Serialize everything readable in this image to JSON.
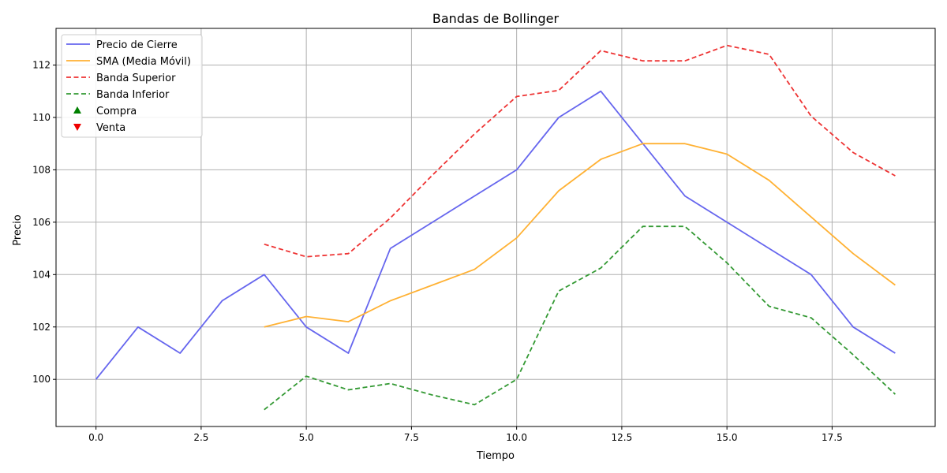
{
  "chart_data": {
    "type": "line",
    "title": "Bandas de Bollinger",
    "xlabel": "Tiempo",
    "ylabel": "Precio",
    "xlim": [
      -0.95,
      19.95
    ],
    "ylim": [
      98.2,
      113.4
    ],
    "xticks": [
      0.0,
      2.5,
      5.0,
      7.5,
      10.0,
      12.5,
      15.0,
      17.5
    ],
    "xtick_labels": [
      "0.0",
      "2.5",
      "5.0",
      "7.5",
      "10.0",
      "12.5",
      "15.0",
      "17.5"
    ],
    "yticks": [
      100,
      102,
      104,
      106,
      108,
      110,
      112
    ],
    "ytick_labels": [
      "100",
      "102",
      "104",
      "106",
      "108",
      "110",
      "112"
    ],
    "grid": true,
    "legend_position": "top-left",
    "series": [
      {
        "name": "Precio de Cierre",
        "color": "#6666ee",
        "style": "solid",
        "x": [
          0,
          1,
          2,
          3,
          4,
          5,
          6,
          7,
          8,
          9,
          10,
          11,
          12,
          13,
          14,
          15,
          16,
          17,
          18,
          19
        ],
        "values": [
          100,
          102,
          101,
          103,
          104,
          102,
          101,
          105,
          106,
          107,
          108,
          110,
          111,
          109,
          107,
          106,
          105,
          104,
          102,
          101
        ]
      },
      {
        "name": "SMA (Media Móvil)",
        "color": "#ffb133",
        "style": "solid",
        "x": [
          4,
          5,
          6,
          7,
          8,
          9,
          10,
          11,
          12,
          13,
          14,
          15,
          16,
          17,
          18,
          19
        ],
        "values": [
          102.0,
          102.4,
          102.2,
          103.0,
          103.6,
          104.2,
          105.4,
          107.2,
          108.4,
          109.0,
          109.0,
          108.6,
          107.6,
          106.2,
          104.8,
          103.6
        ]
      },
      {
        "name": "Banda Superior",
        "color": "#ee3333",
        "style": "dashed",
        "x": [
          4,
          5,
          6,
          7,
          8,
          9,
          10,
          11,
          12,
          13,
          14,
          15,
          16,
          17,
          18,
          19
        ],
        "values": [
          105.16,
          104.68,
          104.8,
          106.16,
          107.8,
          109.37,
          110.8,
          111.03,
          112.55,
          112.16,
          112.16,
          112.75,
          112.41,
          110.05,
          108.66,
          107.77
        ]
      },
      {
        "name": "Banda Inferior",
        "color": "#339933",
        "style": "dashed",
        "x": [
          4,
          5,
          6,
          7,
          8,
          9,
          10,
          11,
          12,
          13,
          14,
          15,
          16,
          17,
          18,
          19
        ],
        "values": [
          98.84,
          100.12,
          99.6,
          99.84,
          99.4,
          99.03,
          100.0,
          103.37,
          104.25,
          105.84,
          105.84,
          104.45,
          102.79,
          102.35,
          100.94,
          99.43
        ]
      }
    ],
    "markers": [
      {
        "name": "Compra",
        "color": "#008000",
        "symbol": "triangle-up",
        "points": []
      },
      {
        "name": "Venta",
        "color": "#ee0000",
        "symbol": "triangle-down",
        "points": []
      }
    ]
  }
}
